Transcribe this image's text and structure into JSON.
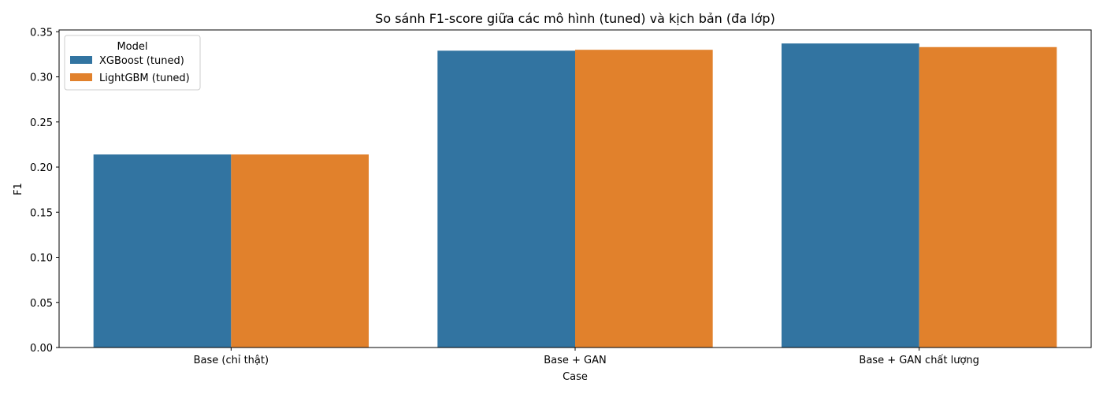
{
  "chart_data": {
    "type": "bar",
    "title": "So sánh F1-score giữa các mô hình (tuned) và kịch bản (đa lớp)",
    "xlabel": "Case",
    "ylabel": "F1",
    "categories": [
      "Base (chỉ thật)",
      "Base + GAN",
      "Base + GAN chất lượng"
    ],
    "series": [
      {
        "name": "XGBoost (tuned)",
        "color": "#3274a1",
        "values": [
          0.214,
          0.329,
          0.337
        ]
      },
      {
        "name": "LightGBM (tuned)",
        "color": "#e1812c",
        "values": [
          0.214,
          0.33,
          0.333
        ]
      }
    ],
    "ylim": [
      0,
      0.352
    ],
    "yticks": [
      "0.00",
      "0.05",
      "0.10",
      "0.15",
      "0.20",
      "0.25",
      "0.30",
      "0.35"
    ],
    "legend": {
      "title": "Model",
      "placement": "top-left"
    },
    "grid": false
  }
}
